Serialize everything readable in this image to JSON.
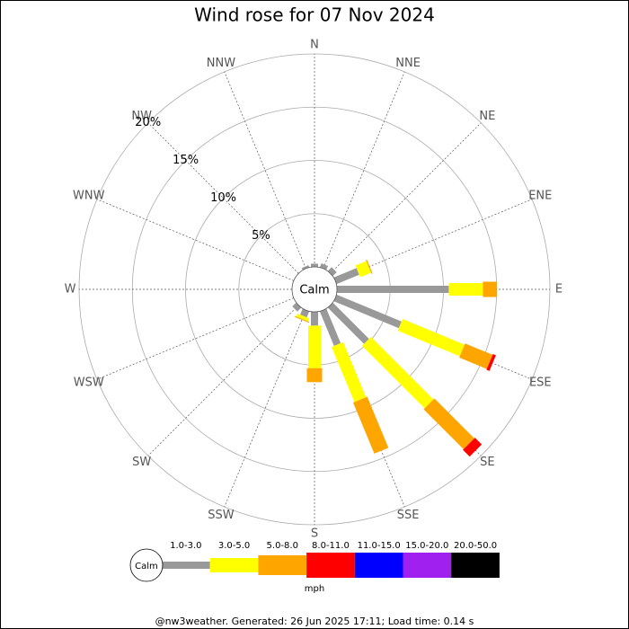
{
  "chart_data": {
    "type": "windrose",
    "title": "Wind rose for 07 Nov 2024",
    "categories": [
      "N",
      "NNE",
      "NE",
      "ENE",
      "E",
      "ESE",
      "SE",
      "SSE",
      "S",
      "SSW",
      "SW",
      "WSW",
      "W",
      "WNW",
      "NW",
      "NNW"
    ],
    "center_label": "Calm",
    "rlim": [
      0,
      20
    ],
    "rticks": [
      {
        "value": 5,
        "label": "5%"
      },
      {
        "value": 10,
        "label": "10%"
      },
      {
        "value": 15,
        "label": "15%"
      },
      {
        "value": 20,
        "label": "20%"
      }
    ],
    "legend_unit": "mph",
    "series": [
      {
        "name": "1.0-3.0",
        "color": "#999999",
        "values": [
          0.3,
          0.4,
          0.5,
          2.3,
          10.5,
          6.6,
          4.8,
          3.5,
          1.3,
          0.6,
          0.5,
          0,
          0,
          0,
          0,
          0.2
        ]
      },
      {
        "name": "3.0-5.0",
        "color": "#ffff00",
        "values": [
          0,
          0,
          0,
          1.1,
          3.2,
          6.3,
          8.3,
          5.6,
          4.0,
          0.3,
          0,
          0,
          0,
          0,
          0,
          0
        ]
      },
      {
        "name": "5.0-8.0",
        "color": "#ffa500",
        "values": [
          0,
          0,
          0,
          0.1,
          1.3,
          2.8,
          5.3,
          5.2,
          1.3,
          0.1,
          0,
          0,
          0,
          0,
          0,
          0
        ]
      },
      {
        "name": "8.0-11.0",
        "color": "#ff0000",
        "values": [
          0,
          0,
          0,
          0,
          0,
          0.3,
          0.9,
          0,
          0,
          0,
          0,
          0,
          0,
          0,
          0,
          0
        ]
      },
      {
        "name": "11.0-15.0",
        "color": "#0000ff",
        "values": [
          0,
          0,
          0,
          0,
          0,
          0,
          0,
          0,
          0,
          0,
          0,
          0,
          0,
          0,
          0,
          0
        ]
      },
      {
        "name": "15.0-20.0",
        "color": "#a020f0",
        "values": [
          0,
          0,
          0,
          0,
          0,
          0,
          0,
          0,
          0,
          0,
          0,
          0,
          0,
          0,
          0,
          0
        ]
      },
      {
        "name": "20.0-50.0",
        "color": "#000000",
        "values": [
          0,
          0,
          0,
          0,
          0,
          0,
          0,
          0,
          0,
          0,
          0,
          0,
          0,
          0,
          0,
          0
        ]
      }
    ],
    "footer": "@nw3weather. Generated: 26 Jun 2025 17:11; Load time: 0.14 s"
  }
}
